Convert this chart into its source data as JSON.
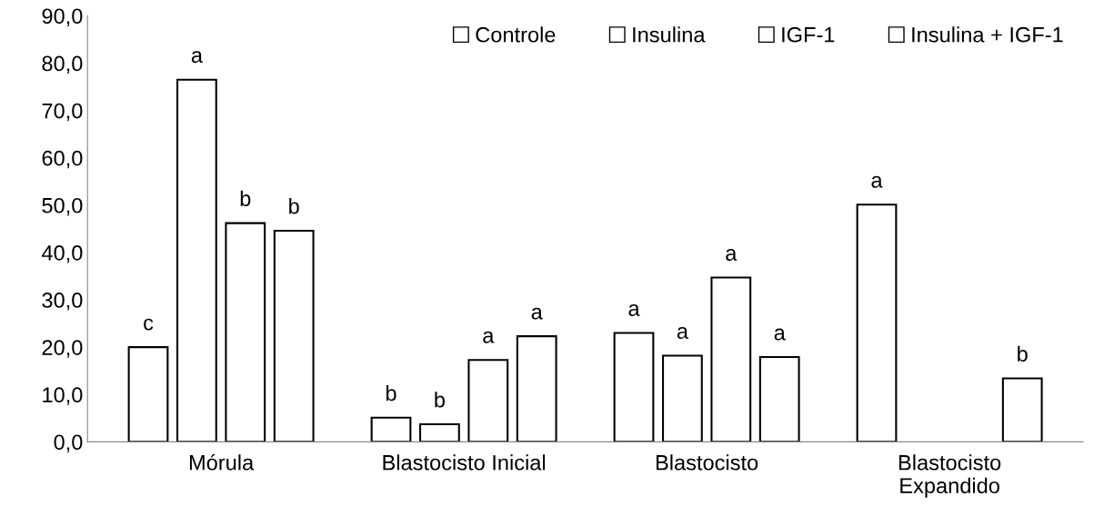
{
  "chart_data": {
    "type": "bar",
    "categories": [
      "Mórula",
      "Blastocisto Inicial",
      "Blastocisto",
      "Blastocisto\nExpandido"
    ],
    "series": [
      {
        "name": "Controle",
        "color": "#ffffff",
        "values": [
          20.0,
          5.1,
          23.0,
          50.1
        ],
        "value_labels": [
          "c",
          "b",
          "a",
          "a"
        ]
      },
      {
        "name": "Insulina",
        "color": "#ffffff",
        "values": [
          76.5,
          3.7,
          18.2,
          null
        ],
        "value_labels": [
          "a",
          "b",
          "a",
          null
        ]
      },
      {
        "name": "IGF-1",
        "color": "#ffffff",
        "values": [
          46.2,
          17.3,
          34.7,
          null
        ],
        "value_labels": [
          "b",
          "a",
          "a",
          null
        ]
      },
      {
        "name": "Insulina + IGF-1",
        "color": "#ffffff",
        "values": [
          44.6,
          22.3,
          17.9,
          13.4
        ],
        "value_labels": [
          "b",
          "a",
          "a",
          "b"
        ]
      }
    ],
    "ylim": [
      0,
      90
    ],
    "yticks": [
      {
        "value": 0,
        "label": "0,0"
      },
      {
        "value": 10,
        "label": "10,0"
      },
      {
        "value": 20,
        "label": "20,0"
      },
      {
        "value": 30,
        "label": "30,0"
      },
      {
        "value": 40,
        "label": "40,0"
      },
      {
        "value": 50,
        "label": "50,0"
      },
      {
        "value": 60,
        "label": "60,0"
      },
      {
        "value": 70,
        "label": "70,0"
      },
      {
        "value": 80,
        "label": "80,0"
      },
      {
        "value": 90,
        "label": "90,0"
      }
    ],
    "grid": false,
    "legend": "top right"
  }
}
